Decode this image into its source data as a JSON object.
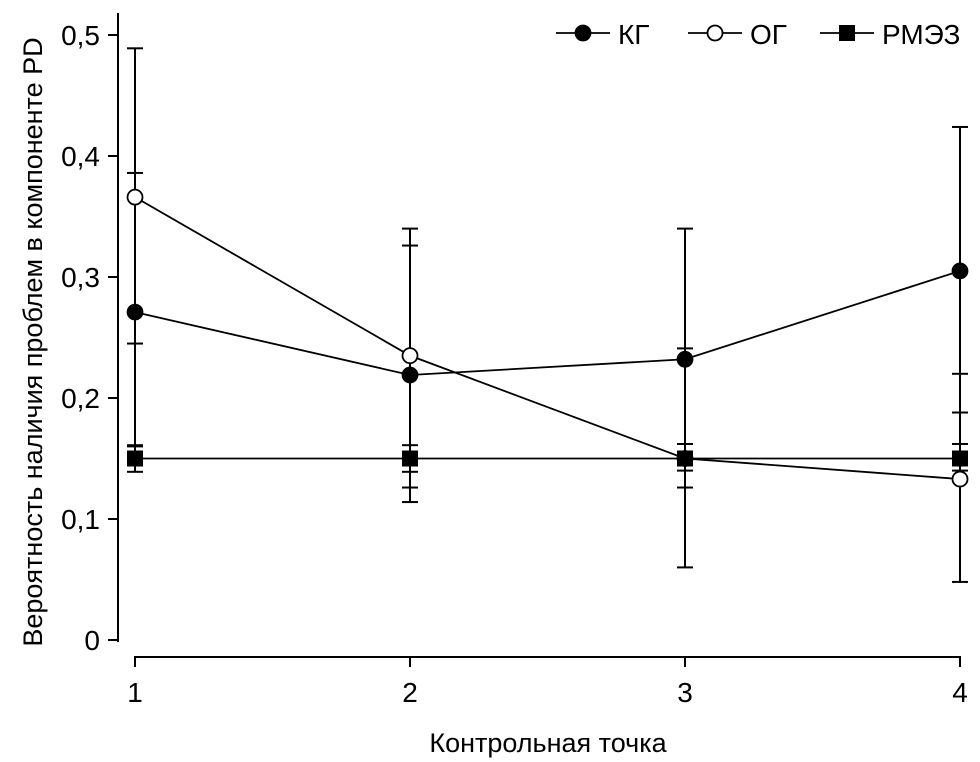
{
  "chart_data": {
    "type": "line",
    "title": "",
    "xlabel": "Контрольная точка",
    "ylabel": "Вероятность наличия проблем в компоненте PD",
    "x": [
      1,
      2,
      3,
      4
    ],
    "x_tick_labels": [
      "1",
      "2",
      "3",
      "4"
    ],
    "ylim": [
      0,
      0.5
    ],
    "y_ticks": [
      0,
      0.1,
      0.2,
      0.3,
      0.4,
      0.5
    ],
    "y_tick_labels": [
      "0",
      "0,1",
      "0,2",
      "0,3",
      "0,4",
      "0,5"
    ],
    "grid": false,
    "legend_position": "top-right",
    "series": [
      {
        "name": "КГ",
        "marker": "filled-circle",
        "values": [
          0.271,
          0.219,
          0.232,
          0.305
        ],
        "err_low": [
          0.16,
          0.126,
          0.126,
          0.188
        ],
        "err_high": [
          0.386,
          0.326,
          0.34,
          0.424
        ]
      },
      {
        "name": "ОГ",
        "marker": "open-circle",
        "values": [
          0.366,
          0.235,
          0.15,
          0.133
        ],
        "err_low": [
          0.245,
          0.114,
          0.06,
          0.048
        ],
        "err_high": [
          0.489,
          0.34,
          0.241,
          0.22
        ]
      },
      {
        "name": "РМЭЗ",
        "marker": "filled-square",
        "values": [
          0.15,
          0.15,
          0.15,
          0.15
        ],
        "err_low": [
          0.139,
          0.139,
          0.14,
          0.14
        ],
        "err_high": [
          0.161,
          0.161,
          0.162,
          0.162
        ]
      }
    ]
  }
}
